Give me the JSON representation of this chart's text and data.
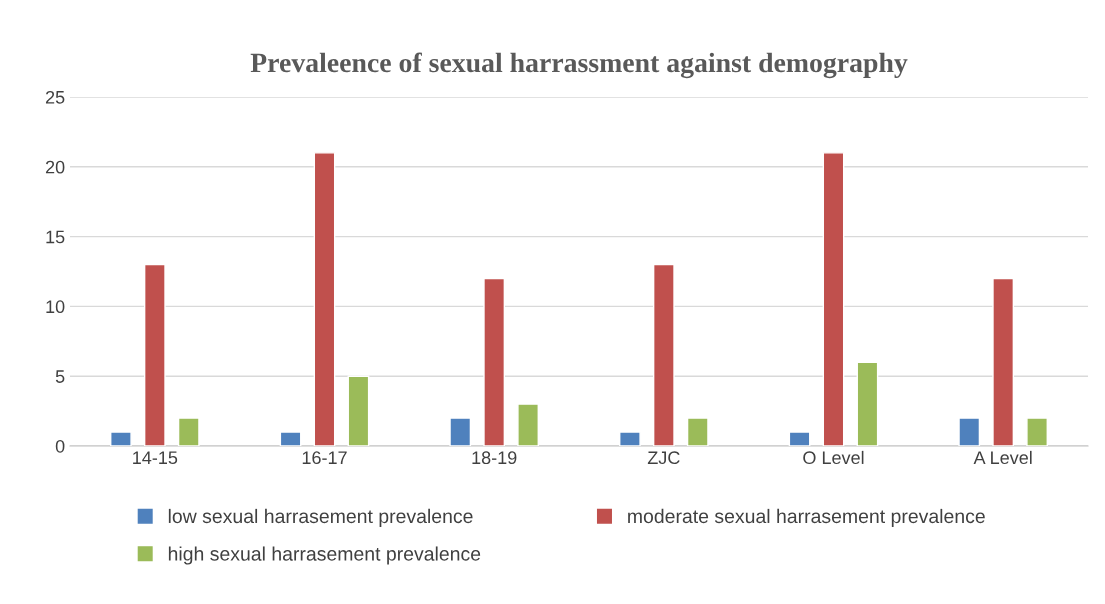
{
  "chart_data": {
    "type": "bar",
    "title": "Prevaleence of sexual harrassment against demography",
    "categories": [
      "14-15",
      "16-17",
      "18-19",
      "ZJC",
      "O Level",
      "A Level"
    ],
    "series": [
      {
        "name": "low sexual harrasement prevalence",
        "color": "#4f81bd",
        "values": [
          1,
          1,
          2,
          1,
          1,
          2
        ]
      },
      {
        "name": "moderate sexual harrasement prevalence",
        "color": "#c0504d",
        "values": [
          13,
          21,
          12,
          13,
          21,
          12
        ]
      },
      {
        "name": "high sexual harrasement prevalence",
        "color": "#9bbb59",
        "values": [
          2,
          5,
          3,
          2,
          6,
          2
        ]
      }
    ],
    "ylim": [
      0,
      25
    ],
    "yticks": [
      0,
      5,
      10,
      15,
      20,
      25
    ],
    "grid": "y",
    "legend": "bottom"
  }
}
